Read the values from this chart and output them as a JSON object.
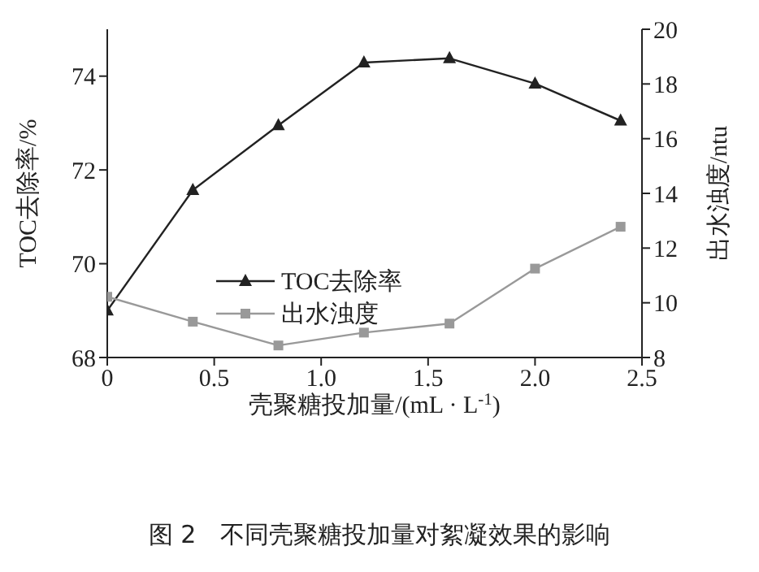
{
  "chart_data": {
    "type": "line",
    "x": [
      0,
      0.4,
      0.8,
      1.2,
      1.6,
      2.0,
      2.4
    ],
    "series": [
      {
        "name": "TOC去除率",
        "color": "#222222",
        "marker": "triangle",
        "values": [
          69.0,
          71.57,
          72.95,
          74.29,
          74.38,
          73.84,
          73.05
        ]
      },
      {
        "name": "出水浊度",
        "color": "#999999",
        "marker": "square",
        "axis": "y2",
        "values": [
          10.22,
          9.31,
          8.44,
          8.91,
          9.24,
          11.25,
          12.78
        ]
      }
    ],
    "xlabel": "壳聚糖投加量/(mL · L$^{-1}$)",
    "ylabel": "TOC去除率/%",
    "y2label": "出水浊度/ntu",
    "xlim": [
      0,
      2.5
    ],
    "xticks": [
      0,
      0.5,
      {
        "value": 1,
        "label": "1.0"
      },
      1.5,
      {
        "value": 2,
        "label": "2.0"
      },
      2.5
    ],
    "ylim": [
      68,
      75
    ],
    "yticks": [
      68,
      70,
      72,
      74
    ],
    "y2lim": [
      8,
      20
    ],
    "y2ticks": [
      8,
      10,
      12,
      14,
      16,
      18,
      20
    ],
    "legend": "center",
    "grid": false,
    "line_style": "solid",
    "annotations": [
      "图 2　不同壳聚糖投加量对絮凝效果的影响"
    ]
  }
}
